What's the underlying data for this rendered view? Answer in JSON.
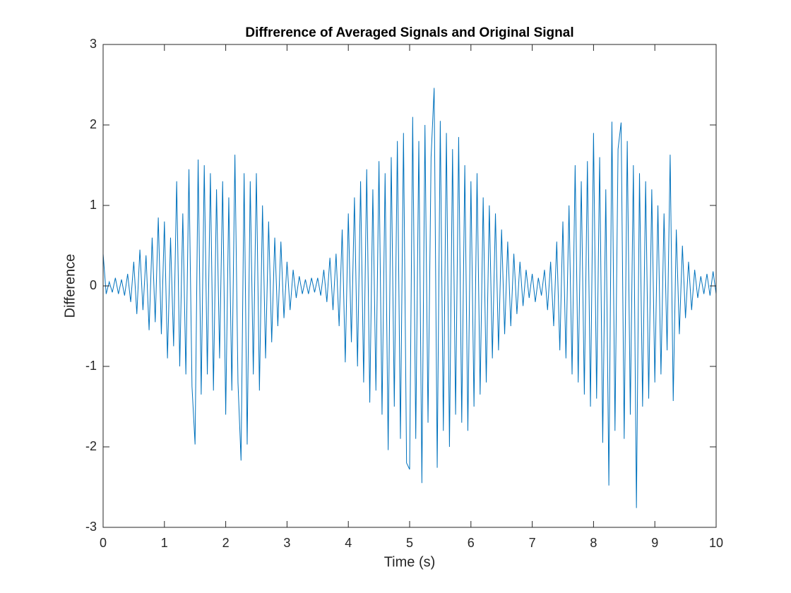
{
  "chart_data": {
    "type": "line",
    "title": "Diffrerence of Averaged Signals and Original Signal",
    "xlabel": "Time (s)",
    "ylabel": "Difference",
    "color": "#0072bd",
    "xlim": [
      0,
      10
    ],
    "xticks": [
      0,
      1,
      2,
      3,
      4,
      5,
      6,
      7,
      8,
      9,
      10
    ],
    "ylim": [
      -3,
      3
    ],
    "yticks": [
      -3,
      -2,
      -1,
      0,
      1,
      2,
      3
    ],
    "x": [
      0,
      0.05,
      0.1,
      0.15,
      0.2,
      0.25,
      0.3,
      0.35,
      0.4,
      0.45,
      0.5,
      0.55,
      0.6,
      0.65,
      0.7,
      0.75,
      0.8,
      0.85,
      0.9,
      0.95,
      1,
      1.05,
      1.1,
      1.15,
      1.2,
      1.25,
      1.3,
      1.35,
      1.4,
      1.45,
      1.5,
      1.55,
      1.6,
      1.65,
      1.7,
      1.75,
      1.8,
      1.85,
      1.9,
      1.95,
      2,
      2.05,
      2.1,
      2.15,
      2.2,
      2.25,
      2.3,
      2.35,
      2.4,
      2.45,
      2.5,
      2.55,
      2.6,
      2.65,
      2.7,
      2.75,
      2.8,
      2.85,
      2.9,
      2.95,
      3,
      3.05,
      3.1,
      3.15,
      3.2,
      3.25,
      3.3,
      3.35,
      3.4,
      3.45,
      3.5,
      3.55,
      3.6,
      3.65,
      3.7,
      3.75,
      3.8,
      3.85,
      3.9,
      3.95,
      4,
      4.05,
      4.1,
      4.15,
      4.2,
      4.25,
      4.3,
      4.35,
      4.4,
      4.45,
      4.5,
      4.55,
      4.6,
      4.65,
      4.7,
      4.75,
      4.8,
      4.85,
      4.9,
      4.95,
      5,
      5.05,
      5.1,
      5.15,
      5.2,
      5.25,
      5.3,
      5.35,
      5.4,
      5.45,
      5.5,
      5.55,
      5.6,
      5.65,
      5.7,
      5.75,
      5.8,
      5.85,
      5.9,
      5.95,
      6,
      6.05,
      6.1,
      6.15,
      6.2,
      6.25,
      6.3,
      6.35,
      6.4,
      6.45,
      6.5,
      6.55,
      6.6,
      6.65,
      6.7,
      6.75,
      6.8,
      6.85,
      6.9,
      6.95,
      7,
      7.05,
      7.1,
      7.15,
      7.2,
      7.25,
      7.3,
      7.35,
      7.4,
      7.45,
      7.5,
      7.55,
      7.6,
      7.65,
      7.7,
      7.75,
      7.8,
      7.85,
      7.9,
      7.95,
      8,
      8.05,
      8.1,
      8.15,
      8.2,
      8.25,
      8.3,
      8.35,
      8.4,
      8.45,
      8.5,
      8.55,
      8.6,
      8.65,
      8.7,
      8.75,
      8.8,
      8.85,
      8.9,
      8.95,
      9,
      9.05,
      9.1,
      9.15,
      9.2,
      9.25,
      9.3,
      9.35,
      9.4,
      9.45,
      9.5,
      9.55,
      9.6,
      9.65,
      9.7,
      9.75,
      9.8,
      9.85,
      9.9,
      9.95,
      10
    ],
    "values": [
      0.4,
      -0.1,
      0.05,
      -0.08,
      0.1,
      -0.1,
      0.08,
      -0.12,
      0.15,
      -0.2,
      0.3,
      -0.35,
      0.45,
      -0.3,
      0.38,
      -0.55,
      0.6,
      -0.45,
      0.85,
      -0.6,
      0.8,
      -0.9,
      0.6,
      -0.75,
      1.3,
      -1.0,
      0.9,
      -1.1,
      1.45,
      -1.25,
      -1.97,
      1.57,
      -1.35,
      1.5,
      -1.1,
      1.4,
      -1.3,
      1.2,
      -0.9,
      1.3,
      -1.6,
      1.1,
      -1.3,
      1.63,
      -1.2,
      -2.17,
      1.4,
      -1.97,
      1.3,
      -1.1,
      1.4,
      -1.3,
      1.0,
      -0.9,
      0.8,
      -0.7,
      0.6,
      -0.5,
      0.55,
      -0.4,
      0.3,
      -0.3,
      0.2,
      -0.15,
      0.12,
      -0.1,
      0.08,
      -0.1,
      0.1,
      -0.08,
      0.1,
      -0.12,
      0.2,
      -0.2,
      0.35,
      -0.3,
      0.4,
      -0.5,
      0.7,
      -0.95,
      0.9,
      -0.7,
      1.1,
      -1.0,
      1.3,
      -1.2,
      1.45,
      -1.45,
      1.2,
      -1.3,
      1.55,
      -1.6,
      1.4,
      -2.04,
      1.6,
      -1.5,
      1.8,
      -1.9,
      1.9,
      -2.2,
      -2.28,
      2.1,
      -1.9,
      1.8,
      -2.45,
      2.0,
      -1.7,
      1.6,
      2.46,
      -2.26,
      2.05,
      -1.8,
      1.9,
      -2.0,
      1.7,
      -1.6,
      1.85,
      -1.7,
      1.5,
      -1.8,
      1.3,
      -1.5,
      1.4,
      -1.35,
      1.1,
      -1.2,
      1.0,
      -0.9,
      0.9,
      -0.8,
      0.7,
      -0.6,
      0.55,
      -0.5,
      0.4,
      -0.35,
      0.3,
      -0.25,
      0.2,
      -0.15,
      0.15,
      -0.2,
      0.1,
      -0.12,
      0.2,
      -0.3,
      0.3,
      -0.5,
      0.55,
      -0.8,
      0.8,
      -0.9,
      1.0,
      -1.1,
      1.5,
      -1.2,
      1.3,
      -1.35,
      1.55,
      -1.5,
      1.9,
      -1.4,
      1.6,
      -1.95,
      1.2,
      -2.48,
      2.04,
      -1.8,
      1.7,
      2.03,
      -1.9,
      1.8,
      -1.6,
      1.5,
      -2.76,
      1.4,
      -1.5,
      1.3,
      -1.4,
      1.2,
      -1.2,
      1.0,
      -1.1,
      0.9,
      -0.8,
      1.63,
      -1.43,
      0.7,
      -0.6,
      0.5,
      -0.4,
      0.3,
      -0.3,
      0.2,
      -0.15,
      0.12,
      -0.1,
      0.15,
      -0.12,
      0.18,
      -0.1
    ]
  }
}
